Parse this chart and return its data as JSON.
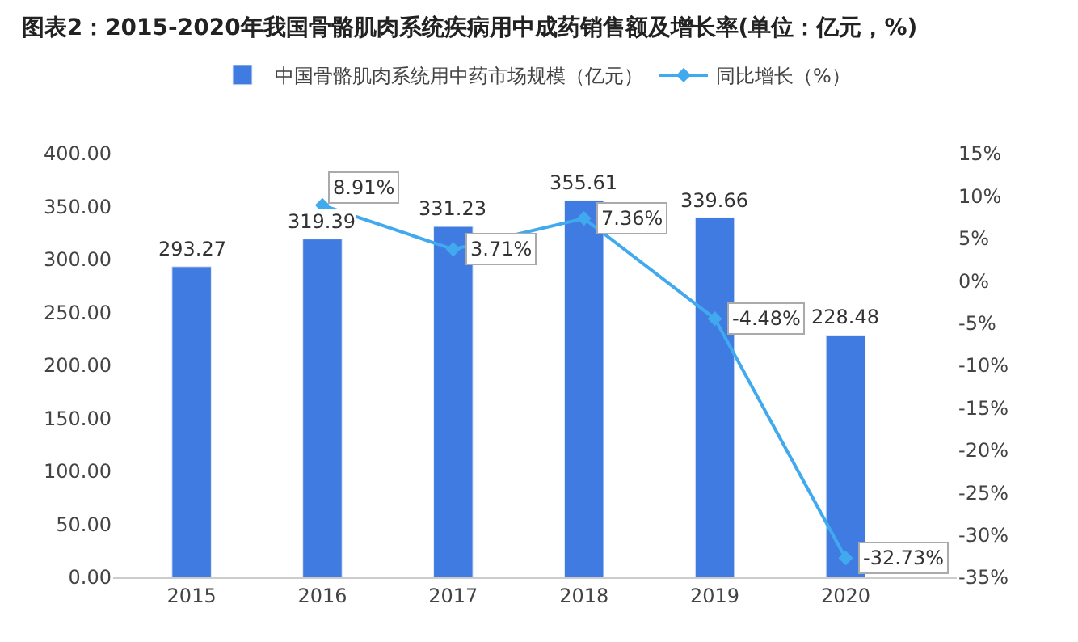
{
  "chart_data": {
    "type": "bar",
    "title": "图表2：2015-2020年我国骨骼肌肉系统疾病用中成药销售额及增长率(单位：亿元，%)",
    "categories": [
      "2015",
      "2016",
      "2017",
      "2018",
      "2019",
      "2020"
    ],
    "series": [
      {
        "name": "中国骨骼肌肉系统用中药市场规模（亿元）",
        "color": "#3f7be0",
        "values": [
          293.27,
          319.39,
          331.23,
          355.61,
          339.66,
          228.48
        ],
        "value_labels": [
          "293.27",
          "319.39",
          "331.23",
          "355.61",
          "339.66",
          "228.48"
        ]
      },
      {
        "name": "同比增长（%）",
        "type": "line",
        "axis": "y2",
        "color": "#41a9ee",
        "marker": "diamond",
        "values": [
          null,
          8.91,
          3.71,
          7.36,
          -4.48,
          -32.73
        ],
        "value_labels": [
          null,
          "8.91%",
          "3.71%",
          "7.36%",
          "-4.48%",
          "-32.73%"
        ]
      }
    ],
    "ylim": [
      0,
      400
    ],
    "yticks": [
      {
        "value": 0,
        "label": "0.00"
      },
      {
        "value": 50,
        "label": "50.00"
      },
      {
        "value": 100,
        "label": "100.00"
      },
      {
        "value": 150,
        "label": "150.00"
      },
      {
        "value": 200,
        "label": "200.00"
      },
      {
        "value": 250,
        "label": "250.00"
      },
      {
        "value": 300,
        "label": "300.00"
      },
      {
        "value": 350,
        "label": "350.00"
      },
      {
        "value": 400,
        "label": "400.00"
      }
    ],
    "y2lim": [
      -35,
      15
    ],
    "y2ticks": [
      {
        "value": -35,
        "label": "-35%"
      },
      {
        "value": -30,
        "label": "-30%"
      },
      {
        "value": -25,
        "label": "-25%"
      },
      {
        "value": -20,
        "label": "-20%"
      },
      {
        "value": -15,
        "label": "-15%"
      },
      {
        "value": -10,
        "label": "-10%"
      },
      {
        "value": -5,
        "label": "-5%"
      },
      {
        "value": 0,
        "label": "0%"
      },
      {
        "value": 5,
        "label": "5%"
      },
      {
        "value": 10,
        "label": "10%"
      },
      {
        "value": 15,
        "label": "15%"
      }
    ],
    "legend": "top"
  }
}
